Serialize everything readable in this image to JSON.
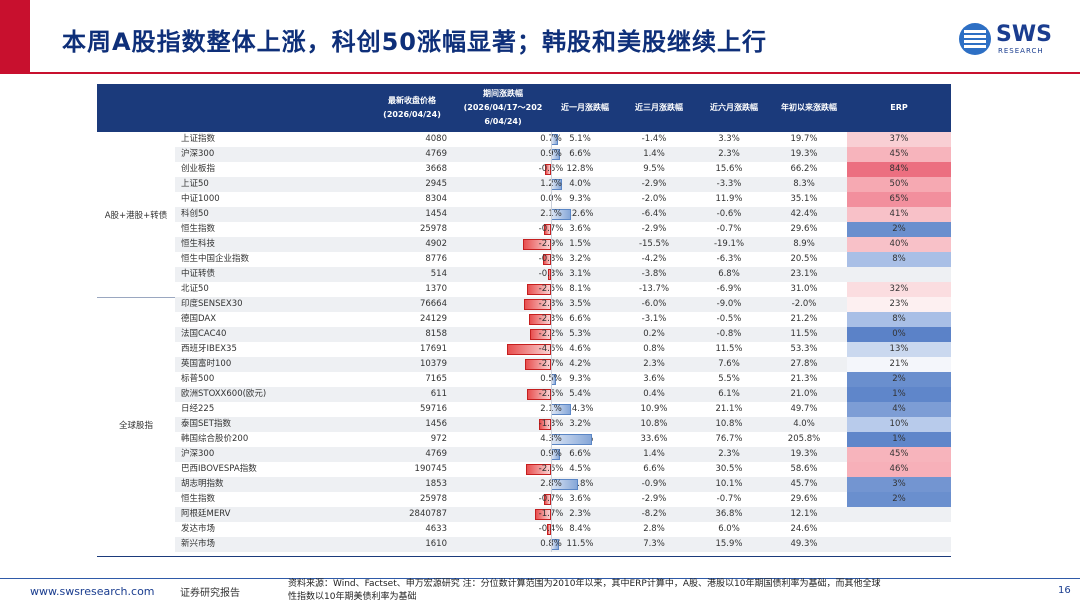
{
  "slide": {
    "title": "本周A股指数整体上涨，科创50涨幅显著；韩股和美股继续上行",
    "logo_text": "SWS",
    "logo_sub": "RESEARCH",
    "accent_red": "#c8102e",
    "accent_blue": "#1b3a7b"
  },
  "table": {
    "headers": {
      "close": "最新收盘价格\n(2026/04/24)",
      "period": "期间涨跌幅\n(2026/04/17～202\n6/04/24)",
      "m1": "近一月涨跌幅",
      "m3": "近三月涨跌幅",
      "m6": "近六月涨跌幅",
      "ytd": "年初以来涨跌幅",
      "erp": "ERP"
    },
    "groups": [
      {
        "label": "A股+港股+转债"
      },
      {
        "label": "全球股指"
      }
    ],
    "rows": [
      {
        "name": "上证指数",
        "close": "4080",
        "chg": "0.7%",
        "chg_v": 0.7,
        "m1": "5.1%",
        "m3": "-1.4%",
        "m6": "3.3%",
        "ytd": "19.7%",
        "erp": "37%",
        "erp_color": "#f9cfd4"
      },
      {
        "name": "沪深300",
        "close": "4769",
        "chg": "0.9%",
        "chg_v": 0.9,
        "m1": "6.6%",
        "m3": "1.4%",
        "m6": "2.3%",
        "ytd": "19.3%",
        "erp": "45%",
        "erp_color": "#f7b4bc"
      },
      {
        "name": "创业板指",
        "close": "3668",
        "chg": "-0.6%",
        "chg_v": -0.6,
        "m1": "12.8%",
        "m3": "9.5%",
        "m6": "15.6%",
        "ytd": "66.2%",
        "erp": "84%",
        "erp_color": "#ec6f80"
      },
      {
        "name": "上证50",
        "close": "2945",
        "chg": "1.2%",
        "chg_v": 1.2,
        "m1": "4.0%",
        "m3": "-2.9%",
        "m6": "-3.3%",
        "ytd": "8.3%",
        "erp": "50%",
        "erp_color": "#f6a9b2"
      },
      {
        "name": "中证1000",
        "close": "8304",
        "chg": "0.0%",
        "chg_v": 0.0,
        "m1": "9.3%",
        "m3": "-2.0%",
        "m6": "11.9%",
        "ytd": "35.1%",
        "erp": "65%",
        "erp_color": "#f28f9d"
      },
      {
        "name": "科创50",
        "close": "1454",
        "chg": "2.1%",
        "chg_v": 2.1,
        "m1": "12.6%",
        "m3": "-6.4%",
        "m6": "-0.6%",
        "ytd": "42.4%",
        "erp": "41%",
        "erp_color": "#f8c1c8"
      },
      {
        "name": "恒生指数",
        "close": "25978",
        "chg": "-0.7%",
        "chg_v": -0.7,
        "m1": "3.6%",
        "m3": "-2.9%",
        "m6": "-0.7%",
        "ytd": "29.6%",
        "erp": "2%",
        "erp_color": "#6a8fce"
      },
      {
        "name": "恒生科技",
        "close": "4902",
        "chg": "-2.9%",
        "chg_v": -2.9,
        "m1": "1.5%",
        "m3": "-15.5%",
        "m6": "-19.1%",
        "ytd": "8.9%",
        "erp": "40%",
        "erp_color": "#f8c1c8"
      },
      {
        "name": "恒生中国企业指数",
        "close": "8776",
        "chg": "-0.8%",
        "chg_v": -0.8,
        "m1": "3.2%",
        "m3": "-4.2%",
        "m6": "-6.3%",
        "ytd": "20.5%",
        "erp": "8%",
        "erp_color": "#a9bfe6"
      },
      {
        "name": "中证转债",
        "close": "514",
        "chg": "-0.3%",
        "chg_v": -0.3,
        "m1": "3.1%",
        "m3": "-3.8%",
        "m6": "6.8%",
        "ytd": "23.1%",
        "erp": "",
        "erp_color": ""
      },
      {
        "name": "北证50",
        "close": "1370",
        "chg": "-2.5%",
        "chg_v": -2.5,
        "m1": "8.1%",
        "m3": "-13.7%",
        "m6": "-6.9%",
        "ytd": "31.0%",
        "erp": "32%",
        "erp_color": "#fbdde0"
      },
      {
        "name": "印度SENSEX30",
        "close": "76664",
        "chg": "-2.8%",
        "chg_v": -2.8,
        "m1": "3.5%",
        "m3": "-6.0%",
        "m6": "-9.0%",
        "ytd": "-2.0%",
        "erp": "23%",
        "erp_color": "#fdf0f1"
      },
      {
        "name": "德国DAX",
        "close": "24129",
        "chg": "-2.3%",
        "chg_v": -2.3,
        "m1": "6.6%",
        "m3": "-3.1%",
        "m6": "-0.5%",
        "ytd": "21.2%",
        "erp": "8%",
        "erp_color": "#a9bfe6"
      },
      {
        "name": "法国CAC40",
        "close": "8158",
        "chg": "-2.2%",
        "chg_v": -2.2,
        "m1": "5.3%",
        "m3": "0.2%",
        "m6": "-0.8%",
        "ytd": "11.5%",
        "erp": "0%",
        "erp_color": "#5b82c8"
      },
      {
        "name": "西班牙IBEX35",
        "close": "17691",
        "chg": "-4.6%",
        "chg_v": -4.6,
        "m1": "4.6%",
        "m3": "0.8%",
        "m6": "11.5%",
        "ytd": "53.3%",
        "erp": "13%",
        "erp_color": "#cad8ef"
      },
      {
        "name": "英国富时100",
        "close": "10379",
        "chg": "-2.7%",
        "chg_v": -2.7,
        "m1": "4.2%",
        "m3": "2.3%",
        "m6": "7.6%",
        "ytd": "27.8%",
        "erp": "21%",
        "erp_color": "#f4f6fb"
      },
      {
        "name": "标普500",
        "close": "7165",
        "chg": "0.5%",
        "chg_v": 0.5,
        "m1": "9.3%",
        "m3": "3.6%",
        "m6": "5.5%",
        "ytd": "21.3%",
        "erp": "2%",
        "erp_color": "#6a8fce"
      },
      {
        "name": "欧洲STOXX600(欧元)",
        "close": "611",
        "chg": "-2.5%",
        "chg_v": -2.5,
        "m1": "5.4%",
        "m3": "0.4%",
        "m6": "6.1%",
        "ytd": "21.0%",
        "erp": "1%",
        "erp_color": "#5f86ca"
      },
      {
        "name": "日经225",
        "close": "59716",
        "chg": "2.1%",
        "chg_v": 2.1,
        "m1": "14.3%",
        "m3": "10.9%",
        "m6": "21.1%",
        "ytd": "49.7%",
        "erp": "4%",
        "erp_color": "#7d9dd5"
      },
      {
        "name": "泰国SET指数",
        "close": "1456",
        "chg": "-1.3%",
        "chg_v": -1.3,
        "m1": "3.2%",
        "m3": "10.8%",
        "m6": "10.8%",
        "ytd": "4.0%",
        "erp": "10%",
        "erp_color": "#b8cbeb"
      },
      {
        "name": "韩国综合股价200",
        "close": "972",
        "chg": "4.3%",
        "chg_v": 4.3,
        "m1": "17.4%",
        "m3": "33.6%",
        "m6": "76.7%",
        "ytd": "205.8%",
        "erp": "1%",
        "erp_color": "#5f86ca"
      },
      {
        "name": "沪深300",
        "close": "4769",
        "chg": "0.9%",
        "chg_v": 0.9,
        "m1": "6.6%",
        "m3": "1.4%",
        "m6": "2.3%",
        "ytd": "19.3%",
        "erp": "45%",
        "erp_color": "#f7b4bc"
      },
      {
        "name": "巴西IBOVESPA指数",
        "close": "190745",
        "chg": "-2.6%",
        "chg_v": -2.6,
        "m1": "4.5%",
        "m3": "6.6%",
        "m6": "30.5%",
        "ytd": "58.6%",
        "erp": "46%",
        "erp_color": "#f7b0b9"
      },
      {
        "name": "胡志明指数",
        "close": "1853",
        "chg": "2.8%",
        "chg_v": 2.8,
        "m1": "14.8%",
        "m3": "-0.9%",
        "m6": "10.1%",
        "ytd": "45.7%",
        "erp": "3%",
        "erp_color": "#7395d1"
      },
      {
        "name": "恒生指数",
        "close": "25978",
        "chg": "-0.7%",
        "chg_v": -0.7,
        "m1": "3.6%",
        "m3": "-2.9%",
        "m6": "-0.7%",
        "ytd": "29.6%",
        "erp": "2%",
        "erp_color": "#6a8fce"
      },
      {
        "name": "阿根廷MERV",
        "close": "2840787",
        "chg": "-1.7%",
        "chg_v": -1.7,
        "m1": "2.3%",
        "m3": "-8.2%",
        "m6": "36.8%",
        "ytd": "12.1%",
        "erp": "",
        "erp_color": ""
      },
      {
        "name": "发达市场",
        "close": "4633",
        "chg": "-0.4%",
        "chg_v": -0.4,
        "m1": "8.4%",
        "m3": "2.8%",
        "m6": "6.0%",
        "ytd": "24.6%",
        "erp": "",
        "erp_color": ""
      },
      {
        "name": "新兴市场",
        "close": "1610",
        "chg": "0.8%",
        "chg_v": 0.8,
        "m1": "11.5%",
        "m3": "7.3%",
        "m6": "15.9%",
        "ytd": "49.3%",
        "erp": "",
        "erp_color": ""
      }
    ]
  },
  "footer": {
    "url": "www.swsresearch.com",
    "report": "证券研究报告",
    "source": "资料来源：Wind、Factset、申万宏源研究 注：分位数计算范围为2010年以来，其中ERP计算中，A股、港股以10年期国债利率为基础，而其他全球性指数以10年期美债利率为基础",
    "page": "16"
  }
}
